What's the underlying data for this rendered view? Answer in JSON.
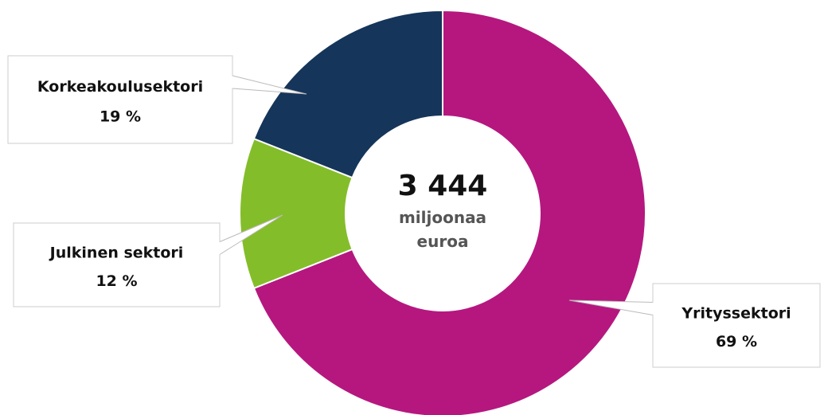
{
  "chart_data": {
    "type": "donut",
    "categories": [
      "Yrityssektori",
      "Julkinen sektori",
      "Korkeakoulusektori"
    ],
    "values": [
      69,
      12,
      19
    ],
    "value_labels": [
      "69 %",
      "12 %",
      "19 %"
    ],
    "colors": [
      "#b5177f",
      "#84bd2a",
      "#15355a"
    ],
    "center_value": "3 444",
    "center_text": "miljoonaa euroa"
  }
}
